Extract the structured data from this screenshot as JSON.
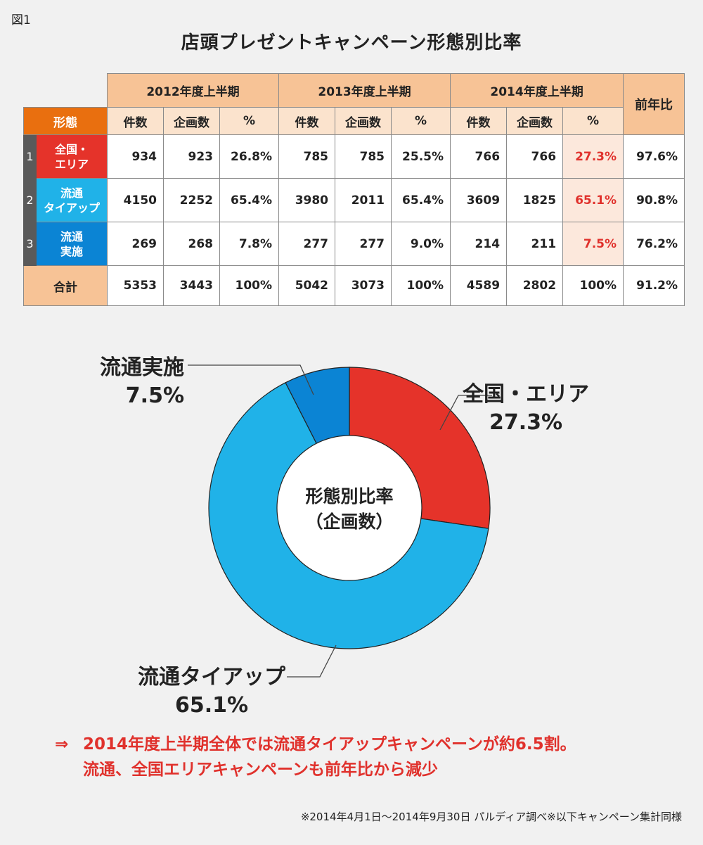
{
  "figure_label": "図1",
  "title": "店頭プレゼントキャンペーン形態別比率",
  "colors": {
    "orange_header": "#e96f0f",
    "light_orange": "#f7c396",
    "pale_orange": "#fbe3cd",
    "highlight_bg": "#fce8dc",
    "highlight_text": "#e0312c",
    "national_area": "#e5332a",
    "distribution_tieup": "#20b2e8",
    "distribution_impl": "#0b84d4"
  },
  "table": {
    "periods": [
      "2012年度上半期",
      "2013年度上半期",
      "2014年度上半期"
    ],
    "yoy_header": "前年比",
    "category_header": "形態",
    "sub_headers": [
      "件数",
      "企画数",
      "%"
    ],
    "rows": [
      {
        "num": "1",
        "label_lines": [
          "全国・",
          "エリア"
        ],
        "color": "#e5332a",
        "values": [
          "934",
          "923",
          "26.8%",
          "785",
          "785",
          "25.5%",
          "766",
          "766",
          "27.3%"
        ],
        "yoy": "97.6%"
      },
      {
        "num": "2",
        "label_lines": [
          "流通",
          "タイアップ"
        ],
        "color": "#20b2e8",
        "values": [
          "4150",
          "2252",
          "65.4%",
          "3980",
          "2011",
          "65.4%",
          "3609",
          "1825",
          "65.1%"
        ],
        "yoy": "90.8%"
      },
      {
        "num": "3",
        "label_lines": [
          "流通",
          "実施"
        ],
        "color": "#0b84d4",
        "values": [
          "269",
          "268",
          "7.8%",
          "277",
          "277",
          "9.0%",
          "214",
          "211",
          "7.5%"
        ],
        "yoy": "76.2%"
      }
    ],
    "total": {
      "label": "合計",
      "values": [
        "5353",
        "3443",
        "100%",
        "5042",
        "3073",
        "100%",
        "4589",
        "2802",
        "100%"
      ],
      "yoy": "91.2%"
    }
  },
  "chart_data": {
    "type": "pie",
    "donut": true,
    "center_label_lines": [
      "形態別比率",
      "（企画数）"
    ],
    "slices": [
      {
        "name": "全国・エリア",
        "value": 27.3,
        "label": "27.3%",
        "color": "#e5332a"
      },
      {
        "name": "流通タイアップ",
        "value": 65.1,
        "label": "65.1%",
        "color": "#20b2e8"
      },
      {
        "name": "流通実施",
        "value": 7.5,
        "label": "7.5%",
        "color": "#0b84d4"
      }
    ]
  },
  "note": {
    "arrow": "⇒",
    "line1": "2014年度上半期全体では流通タイアップキャンペーンが約6.5割。",
    "line2": "流通、全国エリアキャンペーンも前年比から減少"
  },
  "source": "※2014年4月1日～2014年9月30日 パルディア調べ※以下キャンペーン集計同様"
}
